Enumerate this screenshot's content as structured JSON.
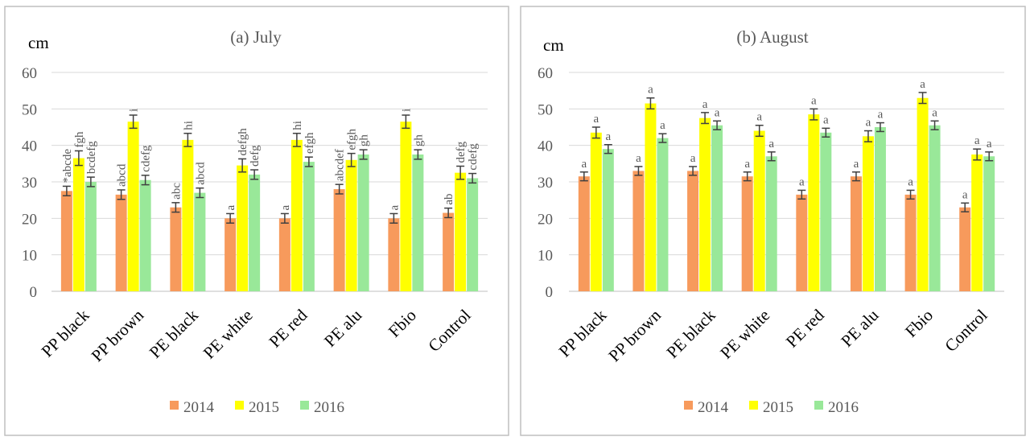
{
  "legend": {
    "s2014": "2014",
    "s2015": "2015",
    "s2016": "2016"
  },
  "colors": {
    "s2014": "#F79A5C",
    "s2015": "#FFFF00",
    "s2016": "#99E899",
    "frame": "#BFBFBF",
    "grid": "#D9D9D9",
    "text": "#595959"
  },
  "chart_data": [
    {
      "type": "bar",
      "title": "(a) July",
      "ylabel": "cm",
      "ylim": [
        0,
        60
      ],
      "yticks": [
        0,
        10,
        20,
        30,
        40,
        50,
        60
      ],
      "categories": [
        "PP black",
        "PP brown",
        "PE black",
        "PE white",
        "PE red",
        "PE alu",
        "Fbio",
        "Control"
      ],
      "series": [
        {
          "name": "2014",
          "values": [
            27.5,
            26.5,
            23,
            20,
            20,
            28,
            20,
            21.5
          ],
          "errors": [
            1.3,
            1.3,
            1.3,
            1.3,
            1.3,
            1.3,
            1.3,
            1.3
          ],
          "labels": [
            "*abcde",
            "abcd",
            "abc",
            "a",
            "a",
            "abcdef",
            "a",
            "ab"
          ]
        },
        {
          "name": "2015",
          "values": [
            36.5,
            46.5,
            41.5,
            34.5,
            41.5,
            36,
            46.5,
            32.5
          ],
          "errors": [
            2,
            1.8,
            1.8,
            1.8,
            1.8,
            1.8,
            1.8,
            1.8
          ],
          "labels": [
            "fgh",
            "i",
            "hi",
            "defgh",
            "hi",
            "efgh",
            "i",
            "defg"
          ]
        },
        {
          "name": "2016",
          "values": [
            30,
            30.5,
            27,
            32,
            35.5,
            37.5,
            37.5,
            31
          ],
          "errors": [
            1.3,
            1.3,
            1.3,
            1.3,
            1.3,
            1.3,
            1.3,
            1.3
          ],
          "labels": [
            "bcdefg",
            "cdefg",
            "abcd",
            "defg",
            "efgh",
            "gh",
            "gh",
            "cdefg"
          ]
        }
      ]
    },
    {
      "type": "bar",
      "title": "(b) August",
      "ylabel": "cm",
      "ylim": [
        0,
        60
      ],
      "yticks": [
        0,
        10,
        20,
        30,
        40,
        50,
        60
      ],
      "categories": [
        "PP black",
        "PP brown",
        "PE black",
        "PE white",
        "PE red",
        "PE alu",
        "Fbio",
        "Control"
      ],
      "series": [
        {
          "name": "2014",
          "values": [
            31.5,
            33,
            33,
            31.5,
            26.5,
            31.5,
            26.5,
            23
          ],
          "errors": [
            1.2,
            1.2,
            1.2,
            1.2,
            1.2,
            1.2,
            1.2,
            1.2
          ],
          "labels": [
            "a",
            "a",
            "a",
            "a",
            "a",
            "a",
            "a",
            "a"
          ]
        },
        {
          "name": "2015",
          "values": [
            43.5,
            51.5,
            47.5,
            44,
            48.5,
            42.5,
            53,
            37.5
          ],
          "errors": [
            1.5,
            1.5,
            1.5,
            1.5,
            1.5,
            1.5,
            1.5,
            1.5
          ],
          "labels": [
            "a",
            "a",
            "a",
            "a",
            "a",
            "a",
            "a",
            "a"
          ]
        },
        {
          "name": "2016",
          "values": [
            39,
            42,
            45.5,
            37,
            43.5,
            45,
            45.5,
            37
          ],
          "errors": [
            1.2,
            1.2,
            1.2,
            1.2,
            1.2,
            1.2,
            1.2,
            1.2
          ],
          "labels": [
            "a",
            "a",
            "a",
            "a",
            "a",
            "a",
            "a",
            "a"
          ]
        }
      ]
    }
  ]
}
